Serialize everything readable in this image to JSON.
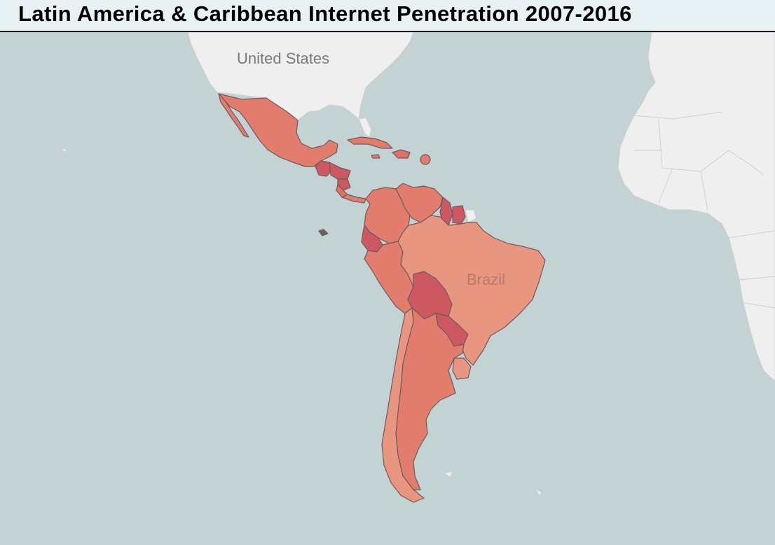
{
  "title": "Latin America & Caribbean Internet Penetration 2007-2016",
  "map_labels": {
    "us": "United States",
    "brazil": "Brazil"
  },
  "colors": {
    "ocean": "#c3d2d3",
    "land": "#efefef",
    "tier_low": "#e8967f",
    "tier_mid": "#e27d6d",
    "tier_mid_high": "#df7167",
    "tier_high": "#cd5862"
  }
}
